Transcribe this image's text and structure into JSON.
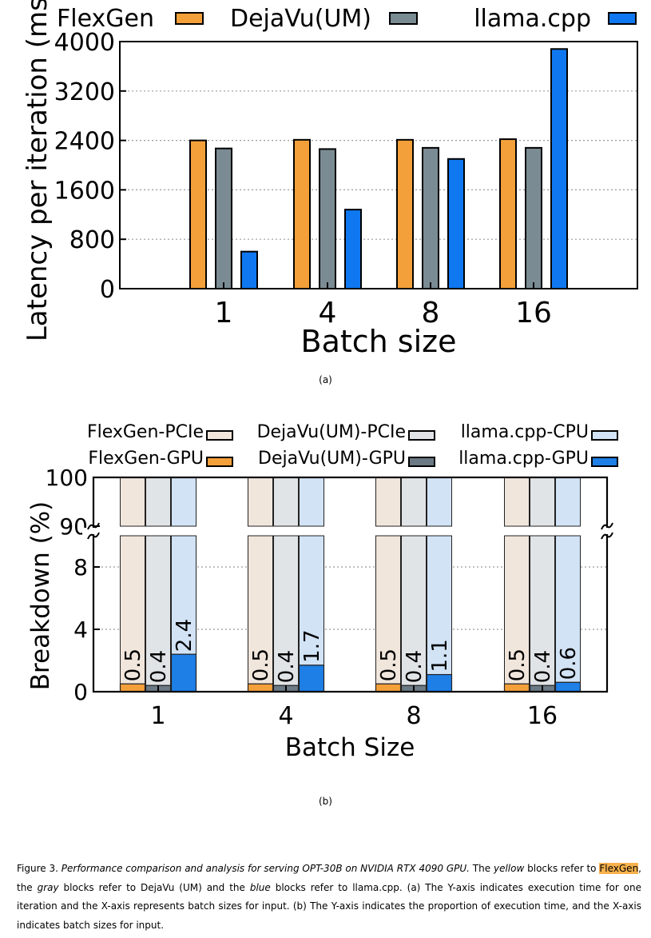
{
  "chart_data": [
    {
      "type": "bar",
      "title": "",
      "xlabel": "Batch size",
      "ylabel": "Latency per iteration (ms)",
      "ylim": [
        0,
        4000
      ],
      "yticks": [
        "0",
        "800",
        "1600",
        "2400",
        "3200",
        "4000"
      ],
      "categories": [
        "1",
        "4",
        "8",
        "16"
      ],
      "grid": "horizontal dotted",
      "legend_position": "top",
      "series": [
        {
          "name": "FlexGen",
          "color": "#f4a03a",
          "values": [
            2400,
            2410,
            2410,
            2420
          ]
        },
        {
          "name": "DejaVu(UM)",
          "color": "#7b8b94",
          "values": [
            2270,
            2260,
            2280,
            2280
          ]
        },
        {
          "name": "llama.cpp",
          "color": "#0f78f0",
          "values": [
            600,
            1280,
            2100,
            3880
          ]
        }
      ]
    },
    {
      "type": "bar",
      "title": "",
      "xlabel": "Batch Size",
      "ylabel": "Breakdown (%)",
      "yticks_lower": [
        "0",
        "4",
        "8"
      ],
      "yticks_upper": [
        "90",
        "100"
      ],
      "axis_break": "~",
      "categories": [
        "1",
        "4",
        "8",
        "16"
      ],
      "grid": "horizontal dotted",
      "legend_position": "top",
      "series": [
        {
          "name": "FlexGen-PCIe",
          "color": "#f1e6dc",
          "values": [
            99.5,
            99.5,
            99.5,
            99.5
          ]
        },
        {
          "name": "FlexGen-GPU",
          "color": "#f4a03a",
          "values": [
            0.5,
            0.5,
            0.5,
            0.5
          ],
          "labels": [
            "0.5",
            "0.5",
            "0.5",
            "0.5"
          ]
        },
        {
          "name": "DejaVu(UM)-PCIe",
          "color": "#e1e4e6",
          "values": [
            99.6,
            99.6,
            99.6,
            99.6
          ]
        },
        {
          "name": "DejaVu(UM)-GPU",
          "color": "#6b7a84",
          "values": [
            0.4,
            0.4,
            0.4,
            0.4
          ],
          "labels": [
            "0.4",
            "0.4",
            "0.4",
            "0.4"
          ]
        },
        {
          "name": "llama.cpp-CPU",
          "color": "#d2e3f6",
          "values": [
            97.6,
            98.3,
            98.9,
            99.4
          ]
        },
        {
          "name": "llama.cpp-GPU",
          "color": "#1e7fe6",
          "values": [
            2.4,
            1.7,
            1.1,
            0.6
          ],
          "labels": [
            "2.4",
            "1.7",
            "1.1",
            "0.6"
          ]
        }
      ]
    }
  ],
  "sublabels": {
    "a": "(a)",
    "b": "(b)"
  },
  "caption": {
    "fig": "Figure 3. ",
    "title": "Performance comparison and analysis for serving OPT-30B on NVIDIA RTX 4090 GPU.",
    "t1": " The ",
    "yellow": "yellow",
    "t2": " blocks refer to ",
    "flexgen": "FlexGen",
    "t3": ", the ",
    "gray": "gray",
    "t4": " blocks refer to DejaVu (UM) and the ",
    "blue": "blue",
    "t5": " blocks refer to llama.cpp. (a) The Y-axis indicates execution time for one iteration and the X-axis represents batch sizes for input. (b) The Y-axis indicates the proportion of execution time, and the X-axis indicates batch sizes for input."
  }
}
